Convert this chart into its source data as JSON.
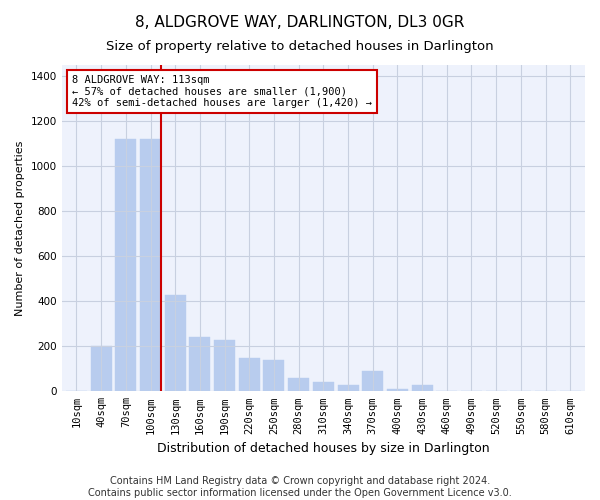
{
  "title": "8, ALDGROVE WAY, DARLINGTON, DL3 0GR",
  "subtitle": "Size of property relative to detached houses in Darlington",
  "xlabel": "Distribution of detached houses by size in Darlington",
  "ylabel": "Number of detached properties",
  "categories": [
    "10sqm",
    "40sqm",
    "70sqm",
    "100sqm",
    "130sqm",
    "160sqm",
    "190sqm",
    "220sqm",
    "250sqm",
    "280sqm",
    "310sqm",
    "340sqm",
    "370sqm",
    "400sqm",
    "430sqm",
    "460sqm",
    "490sqm",
    "520sqm",
    "550sqm",
    "580sqm",
    "610sqm"
  ],
  "values": [
    0,
    200,
    1120,
    1120,
    430,
    240,
    230,
    150,
    140,
    60,
    40,
    30,
    90,
    10,
    30,
    0,
    0,
    0,
    0,
    0,
    0
  ],
  "bar_color": "#b8ccee",
  "bar_edgecolor": "#b8ccee",
  "vline_x": 3.43,
  "vline_color": "#cc0000",
  "annotation_text": "8 ALDGROVE WAY: 113sqm\n← 57% of detached houses are smaller (1,900)\n42% of semi-detached houses are larger (1,420) →",
  "annotation_box_color": "#cc0000",
  "ylim": [
    0,
    1450
  ],
  "yticks": [
    0,
    200,
    400,
    600,
    800,
    1000,
    1200,
    1400
  ],
  "footer1": "Contains HM Land Registry data © Crown copyright and database right 2024.",
  "footer2": "Contains public sector information licensed under the Open Government Licence v3.0.",
  "bg_color": "#eef2fc",
  "grid_color": "#c8d0e0",
  "title_fontsize": 11,
  "subtitle_fontsize": 9.5,
  "xlabel_fontsize": 9,
  "ylabel_fontsize": 8,
  "tick_fontsize": 7.5,
  "footer_fontsize": 7
}
